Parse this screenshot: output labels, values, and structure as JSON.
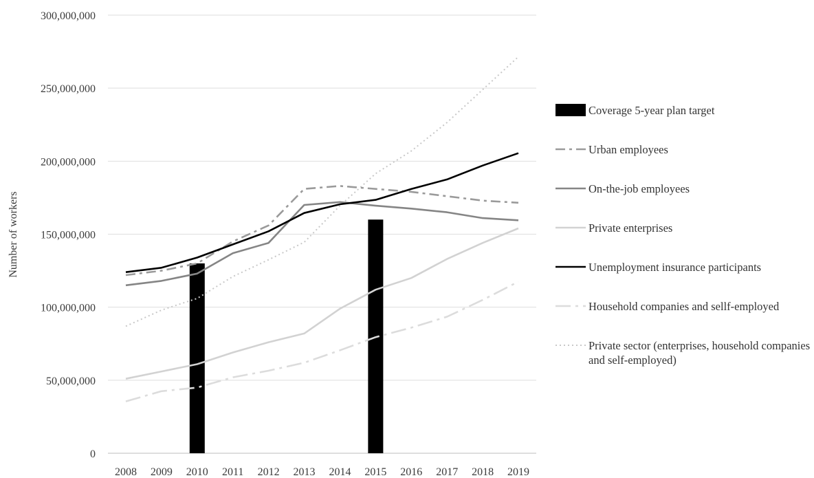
{
  "chart_data": {
    "type": "bar+line",
    "title": "",
    "xlabel": "",
    "ylabel": "Number of workers",
    "ylim": [
      0,
      300000000
    ],
    "yticks": [
      "0",
      "50,000,000",
      "100,000,000",
      "150,000,000",
      "200,000,000",
      "250,000,000",
      "300,000,000"
    ],
    "grid": true,
    "legend_position": "right",
    "categories": [
      "2008",
      "2009",
      "2010",
      "2011",
      "2012",
      "2013",
      "2014",
      "2015",
      "2016",
      "2017",
      "2018",
      "2019"
    ],
    "series": [
      {
        "name": "Coverage 5-year plan target",
        "kind": "bar",
        "color": "#000000",
        "values": [
          null,
          null,
          130000000,
          null,
          null,
          null,
          null,
          160000000,
          null,
          null,
          null,
          null
        ]
      },
      {
        "name": "Urban employees",
        "kind": "line",
        "dash": "dashdot-long",
        "color": "#9a9a9a",
        "values": [
          122000000,
          125000000,
          130000000,
          145000000,
          156000000,
          181000000,
          183000000,
          181000000,
          179000000,
          176000000,
          173000000,
          171500000
        ]
      },
      {
        "name": "On-the-job employees",
        "kind": "line",
        "dash": "solid",
        "color": "#858585",
        "values": [
          115000000,
          118000000,
          123000000,
          137000000,
          144000000,
          170000000,
          172000000,
          169500000,
          167500000,
          165000000,
          161000000,
          159500000
        ]
      },
      {
        "name": "Private enterprises",
        "kind": "line",
        "dash": "solid",
        "color": "#d2d2d2",
        "values": [
          51000000,
          56000000,
          61000000,
          69000000,
          76000000,
          82000000,
          99000000,
          112000000,
          120000000,
          133000000,
          144000000,
          154000000
        ]
      },
      {
        "name": "Unemployment insurance participants",
        "kind": "line",
        "dash": "solid",
        "color": "#000000",
        "values": [
          124000000,
          127000000,
          134000000,
          143000000,
          152000000,
          164500000,
          170500000,
          173500000,
          181000000,
          187500000,
          197000000,
          205500000
        ]
      },
      {
        "name": "Household companies and sellf-employed",
        "kind": "line",
        "dash": "dashdot",
        "color": "#dcdcdc",
        "values": [
          35500000,
          42500000,
          45000000,
          52000000,
          56500000,
          62000000,
          70500000,
          79500000,
          86000000,
          93500000,
          105000000,
          117500000
        ]
      },
      {
        "name": "Private sector (enterprises, household companies and self-employed)",
        "kind": "line",
        "dash": "dotted",
        "color": "#c8c8c8",
        "values": [
          87000000,
          98000000,
          106000000,
          121000000,
          132500000,
          144500000,
          169500000,
          191500000,
          207000000,
          226500000,
          249000000,
          271500000
        ]
      }
    ]
  }
}
